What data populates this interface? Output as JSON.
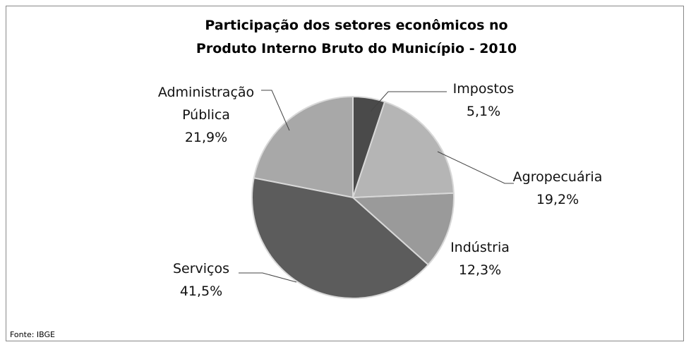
{
  "chart_data": {
    "type": "pie",
    "title": "Participação dos setores econômicos no Produto Interno Bruto do Município - 2010",
    "categories": [
      "Impostos",
      "Agropecuária",
      "Indústria",
      "Serviços",
      "Administração Pública"
    ],
    "values": [
      5.1,
      19.2,
      12.3,
      41.5,
      21.9
    ],
    "value_labels": [
      "5,1%",
      "19,2%",
      "12,3%",
      "41,5%",
      "21,9%"
    ],
    "colors": [
      "#4a4a4a",
      "#b5b5b5",
      "#9a9a9a",
      "#5c5c5c",
      "#a8a8a8"
    ],
    "source": "Fonte: IBGE"
  }
}
